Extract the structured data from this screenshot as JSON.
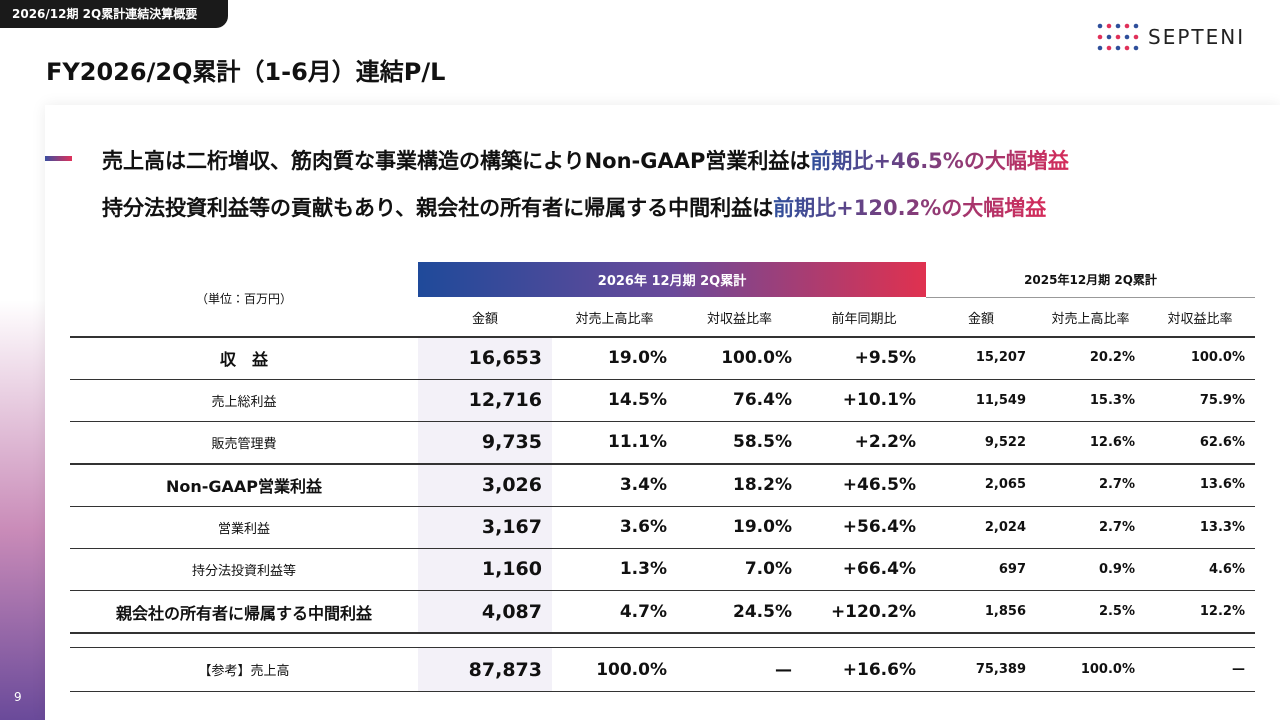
{
  "header": {
    "tag": "2026/12期 2Q累計連結決算概要",
    "title": "FY2026/2Q累計（1-6月）連結P/L",
    "logo": "SEPTENI"
  },
  "headline": {
    "line1": {
      "text": "売上高は二桁増収、筋肉質な事業構造の構築によりNon-GAAP営業利益は",
      "highlight": "前期比+46.5%の大幅増益"
    },
    "line2": {
      "text": "持分法投資利益等の貢献もあり、親会社の所有者に帰属する中間利益は",
      "highlight": "前期比+120.2%の大幅増益"
    }
  },
  "table": {
    "unit": "（単位：百万円）",
    "group_current": "2026年 12月期 2Q累計",
    "group_prior": "2025年12月期 2Q累計",
    "columns": [
      "金額",
      "対売上高比率",
      "対収益比率",
      "前年同期比",
      "金額",
      "対売上高比率",
      "対収益比率"
    ],
    "rows": [
      [
        "収　益",
        "16,653",
        "19.0%",
        "100.0%",
        "+9.5%",
        "15,207",
        "20.2%",
        "100.0%"
      ],
      [
        "売上総利益",
        "12,716",
        "14.5%",
        "76.4%",
        "+10.1%",
        "11,549",
        "15.3%",
        "75.9%"
      ],
      [
        "販売管理費",
        "9,735",
        "11.1%",
        "58.5%",
        "+2.2%",
        "9,522",
        "12.6%",
        "62.6%"
      ],
      [
        "Non-GAAP営業利益",
        "3,026",
        "3.4%",
        "18.2%",
        "+46.5%",
        "2,065",
        "2.7%",
        "13.6%"
      ],
      [
        "営業利益",
        "3,167",
        "3.6%",
        "19.0%",
        "+56.4%",
        "2,024",
        "2.7%",
        "13.3%"
      ],
      [
        "持分法投資利益等",
        "1,160",
        "1.3%",
        "7.0%",
        "+66.4%",
        "697",
        "0.9%",
        "4.6%"
      ],
      [
        "親会社の所有者に帰属する中間利益",
        "4,087",
        "4.7%",
        "24.5%",
        "+120.2%",
        "1,856",
        "2.5%",
        "12.2%"
      ]
    ],
    "reference_row": [
      "【参考】売上高",
      "87,873",
      "100.0%",
      "—",
      "+16.6%",
      "75,389",
      "100.0%",
      "—"
    ]
  },
  "page_number": "9"
}
